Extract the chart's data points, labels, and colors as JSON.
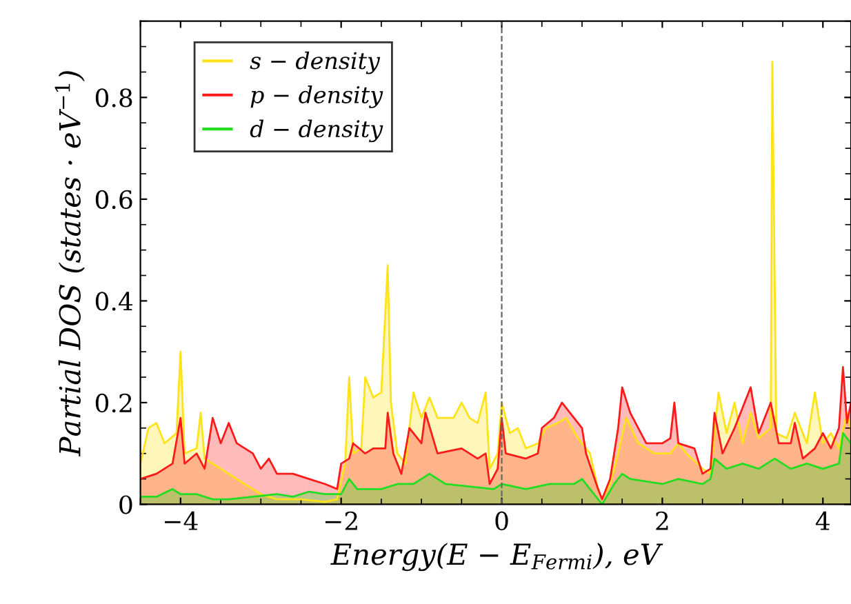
{
  "chart_data": {
    "type": "area",
    "xlabel": "Energy(E − E$_{Fermi}$), eV",
    "ylabel": "Partial DOS (states · eV$^{−1}$)",
    "xlim": [
      -4.5,
      4.35
    ],
    "ylim": [
      0,
      0.95
    ],
    "xticks": [
      {
        "value": -4,
        "label": "−4"
      },
      {
        "value": -2,
        "label": "−2"
      },
      0,
      2,
      4
    ],
    "yticks": [
      0,
      0.2,
      0.4,
      0.6,
      0.8
    ],
    "legend": "top left",
    "grid": false,
    "ref_lines": [
      {
        "axis": "x",
        "value": 0,
        "color": "#666666",
        "line_style": "dashed"
      }
    ],
    "series": [
      {
        "name": "s − density",
        "color": "#ffe21a",
        "x": [
          -4.5,
          -4.4,
          -4.3,
          -4.2,
          -4.05,
          -4.0,
          -3.95,
          -3.8,
          -3.75,
          -3.7,
          -3.5,
          -3.3,
          -3.0,
          -2.8,
          -2.5,
          -2.2,
          -2.05,
          -1.95,
          -1.9,
          -1.85,
          -1.75,
          -1.7,
          -1.6,
          -1.5,
          -1.42,
          -1.38,
          -1.3,
          -1.2,
          -1.1,
          -1.0,
          -0.9,
          -0.8,
          -0.6,
          -0.5,
          -0.4,
          -0.3,
          -0.2,
          -0.15,
          -0.05,
          0.0,
          0.1,
          0.2,
          0.3,
          0.45,
          0.55,
          0.7,
          0.8,
          0.95,
          1.0,
          1.1,
          1.2,
          1.25,
          1.35,
          1.45,
          1.55,
          1.7,
          1.9,
          2.1,
          2.2,
          2.3,
          2.5,
          2.6,
          2.7,
          2.8,
          2.9,
          3.0,
          3.1,
          3.2,
          3.35,
          3.37,
          3.42,
          3.55,
          3.65,
          3.8,
          3.9,
          4.0,
          4.1,
          4.2,
          4.3,
          4.35
        ],
        "values": [
          0.08,
          0.15,
          0.16,
          0.12,
          0.14,
          0.3,
          0.1,
          0.11,
          0.18,
          0.09,
          0.07,
          0.05,
          0.02,
          0.01,
          0.01,
          0.005,
          0.01,
          0.08,
          0.25,
          0.1,
          0.11,
          0.25,
          0.21,
          0.22,
          0.47,
          0.2,
          0.1,
          0.08,
          0.22,
          0.17,
          0.21,
          0.17,
          0.17,
          0.2,
          0.17,
          0.16,
          0.22,
          0.07,
          0.1,
          0.2,
          0.14,
          0.15,
          0.11,
          0.12,
          0.15,
          0.16,
          0.17,
          0.13,
          0.12,
          0.1,
          0.03,
          0.01,
          0.04,
          0.1,
          0.17,
          0.12,
          0.1,
          0.1,
          0.12,
          0.1,
          0.07,
          0.06,
          0.22,
          0.14,
          0.2,
          0.12,
          0.18,
          0.13,
          0.15,
          0.87,
          0.14,
          0.13,
          0.18,
          0.12,
          0.22,
          0.12,
          0.14,
          0.11,
          0.18,
          0.15
        ]
      },
      {
        "name": "p − density",
        "color": "#ff1a1a",
        "x": [
          -4.5,
          -4.3,
          -4.1,
          -4.0,
          -3.95,
          -3.8,
          -3.7,
          -3.6,
          -3.5,
          -3.4,
          -3.3,
          -3.1,
          -3.0,
          -2.9,
          -2.8,
          -2.6,
          -2.4,
          -2.2,
          -2.05,
          -2.0,
          -1.9,
          -1.85,
          -1.7,
          -1.6,
          -1.45,
          -1.42,
          -1.35,
          -1.25,
          -1.15,
          -1.0,
          -0.95,
          -0.8,
          -0.5,
          -0.3,
          -0.2,
          -0.15,
          -0.05,
          0.0,
          0.05,
          0.3,
          0.45,
          0.5,
          0.65,
          0.75,
          0.9,
          1.0,
          1.05,
          1.2,
          1.25,
          1.35,
          1.45,
          1.5,
          1.6,
          1.8,
          2.0,
          2.1,
          2.15,
          2.2,
          2.4,
          2.5,
          2.6,
          2.65,
          2.75,
          2.9,
          3.1,
          3.2,
          3.35,
          3.45,
          3.6,
          3.65,
          3.75,
          3.9,
          4.0,
          4.1,
          4.2,
          4.25,
          4.3,
          4.35
        ],
        "values": [
          0.05,
          0.06,
          0.08,
          0.17,
          0.08,
          0.1,
          0.07,
          0.17,
          0.12,
          0.16,
          0.12,
          0.1,
          0.07,
          0.09,
          0.06,
          0.06,
          0.05,
          0.04,
          0.03,
          0.08,
          0.09,
          0.12,
          0.1,
          0.11,
          0.11,
          0.18,
          0.1,
          0.06,
          0.15,
          0.12,
          0.18,
          0.1,
          0.11,
          0.09,
          0.1,
          0.04,
          0.07,
          0.17,
          0.1,
          0.09,
          0.1,
          0.15,
          0.17,
          0.2,
          0.17,
          0.15,
          0.1,
          0.03,
          0.01,
          0.05,
          0.15,
          0.23,
          0.18,
          0.12,
          0.12,
          0.13,
          0.2,
          0.12,
          0.11,
          0.06,
          0.07,
          0.18,
          0.1,
          0.15,
          0.23,
          0.14,
          0.2,
          0.12,
          0.12,
          0.16,
          0.09,
          0.11,
          0.14,
          0.11,
          0.15,
          0.27,
          0.16,
          0.2
        ]
      },
      {
        "name": "d − density",
        "color": "#22dd22",
        "x": [
          -4.5,
          -4.3,
          -4.1,
          -4.0,
          -3.8,
          -3.6,
          -3.4,
          -3.1,
          -2.8,
          -2.6,
          -2.4,
          -2.2,
          -2.0,
          -1.9,
          -1.8,
          -1.5,
          -1.3,
          -1.1,
          -0.9,
          -0.7,
          -0.4,
          -0.1,
          0.0,
          0.3,
          0.6,
          0.9,
          1.0,
          1.1,
          1.25,
          1.4,
          1.5,
          1.6,
          2.0,
          2.2,
          2.5,
          2.6,
          2.65,
          2.8,
          3.0,
          3.2,
          3.4,
          3.6,
          3.8,
          4.0,
          4.2,
          4.25,
          4.35
        ],
        "values": [
          0.015,
          0.015,
          0.03,
          0.02,
          0.02,
          0.01,
          0.01,
          0.015,
          0.02,
          0.015,
          0.025,
          0.02,
          0.02,
          0.05,
          0.03,
          0.03,
          0.04,
          0.04,
          0.06,
          0.04,
          0.035,
          0.03,
          0.04,
          0.03,
          0.04,
          0.04,
          0.05,
          0.03,
          0.0,
          0.04,
          0.06,
          0.05,
          0.04,
          0.05,
          0.04,
          0.05,
          0.09,
          0.07,
          0.08,
          0.07,
          0.09,
          0.07,
          0.08,
          0.07,
          0.08,
          0.14,
          0.12
        ]
      }
    ]
  }
}
